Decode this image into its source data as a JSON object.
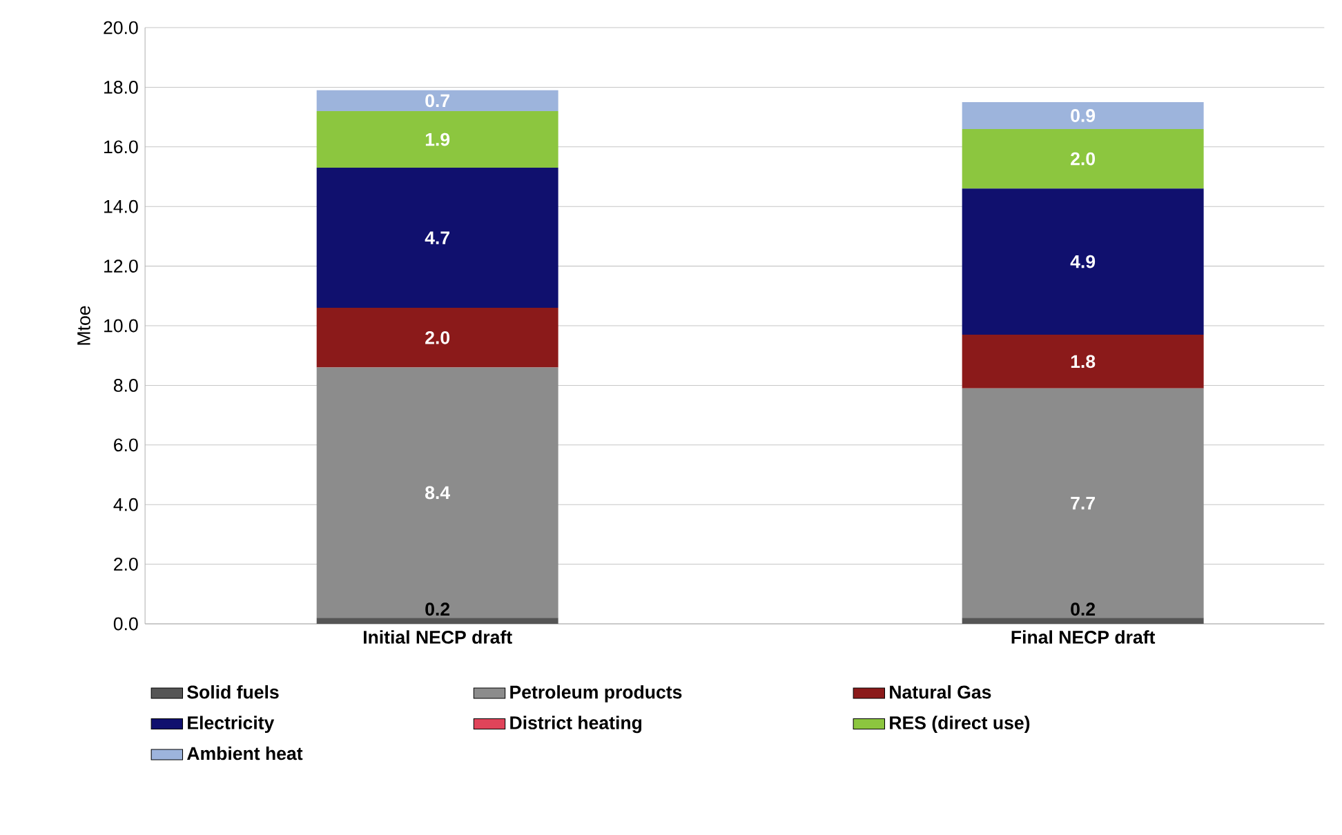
{
  "chart_data": {
    "type": "bar",
    "stacked": true,
    "ylabel": "Mtoe",
    "categories": [
      "Initial NECP draft",
      "Final NECP draft"
    ],
    "series": [
      {
        "name": "Solid fuels",
        "color": "#555555",
        "values": [
          0.2,
          0.2
        ],
        "value_labels": [
          "0.2",
          "0.2"
        ]
      },
      {
        "name": "Petroleum products",
        "color": "#8c8c8c",
        "values": [
          8.4,
          7.7
        ],
        "value_labels": [
          "8.4",
          "7.7"
        ]
      },
      {
        "name": "Natural Gas",
        "color": "#8b1a1a",
        "values": [
          2.0,
          1.8
        ],
        "value_labels": [
          "2.0",
          "1.8"
        ]
      },
      {
        "name": "Electricity",
        "color": "#10106e",
        "values": [
          4.7,
          4.9
        ],
        "value_labels": [
          "4.7",
          "4.9"
        ]
      },
      {
        "name": "District heating",
        "color": "#e0445a",
        "values": [
          0,
          0
        ]
      },
      {
        "name": "RES (direct use)",
        "color": "#8cc63f",
        "values": [
          1.9,
          2.0
        ],
        "value_labels": [
          "1.9",
          "2.0"
        ]
      },
      {
        "name": "Ambient heat",
        "color": "#9db4dc",
        "values": [
          0.7,
          0.9
        ],
        "value_labels": [
          "0.7",
          "0.9"
        ]
      }
    ],
    "ylim": [
      0,
      20
    ],
    "yticks": [
      {
        "value": 0,
        "label": "0.0"
      },
      {
        "value": 2,
        "label": "2.0"
      },
      {
        "value": 4,
        "label": "4.0"
      },
      {
        "value": 6,
        "label": "6.0"
      },
      {
        "value": 8,
        "label": "8.0"
      },
      {
        "value": 10,
        "label": "10.0"
      },
      {
        "value": 12,
        "label": "12.0"
      },
      {
        "value": 14,
        "label": "14.0"
      },
      {
        "value": 16,
        "label": "16.0"
      },
      {
        "value": 18,
        "label": "18.0"
      },
      {
        "value": 20,
        "label": "20.0"
      }
    ],
    "grid": "y",
    "legend": "bottom"
  }
}
